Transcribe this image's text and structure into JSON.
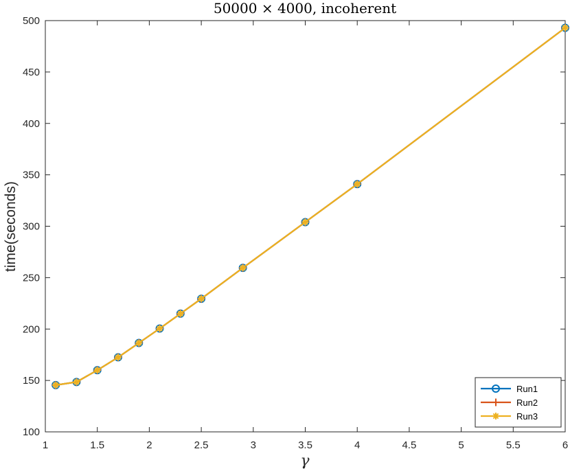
{
  "chart_data": {
    "type": "line",
    "title": "50000 × 4000, incoherent",
    "xlabel": "γ",
    "ylabel": "time(seconds)",
    "xlim": [
      1,
      6
    ],
    "ylim": [
      100,
      500
    ],
    "xticks": [
      1,
      1.5,
      2,
      2.5,
      3,
      3.5,
      4,
      4.5,
      5,
      5.5,
      6
    ],
    "xtick_labels": [
      "1",
      "1.5",
      "2",
      "2.5",
      "3",
      "3.5",
      "4",
      "4.5",
      "5",
      "5.5",
      "6"
    ],
    "yticks": [
      100,
      150,
      200,
      250,
      300,
      350,
      400,
      450,
      500
    ],
    "ytick_labels": [
      "100",
      "150",
      "200",
      "250",
      "300",
      "350",
      "400",
      "450",
      "500"
    ],
    "grid": false,
    "legend_position": "bottom-right",
    "x": [
      1.1,
      1.3,
      1.5,
      1.7,
      1.9,
      2.1,
      2.3,
      2.5,
      2.9,
      3.5,
      4,
      6
    ],
    "series": [
      {
        "name": "Run1",
        "color": "#0072BD",
        "marker": "circle",
        "values": [
          145.5,
          148.5,
          160,
          172.5,
          186.5,
          200.5,
          215,
          229.5,
          259.5,
          304,
          341,
          493
        ]
      },
      {
        "name": "Run2",
        "color": "#D95319",
        "marker": "plus",
        "values": [
          145.5,
          148.5,
          160,
          172.5,
          186.5,
          200.5,
          215,
          229.5,
          259.5,
          304,
          341,
          493
        ]
      },
      {
        "name": "Run3",
        "color": "#EDB120",
        "marker": "star",
        "values": [
          145.5,
          148.5,
          160,
          172.5,
          186.5,
          200.5,
          215,
          229.5,
          259.5,
          304,
          341,
          493
        ]
      }
    ]
  }
}
